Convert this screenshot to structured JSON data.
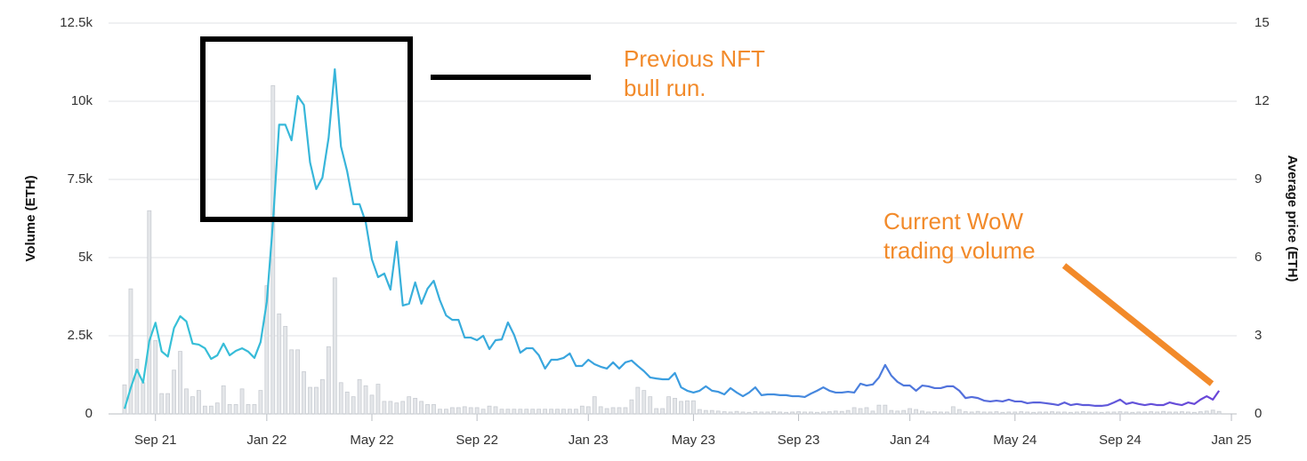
{
  "chart_data": {
    "type": "combo",
    "categories": [
      null,
      null,
      null,
      null,
      null,
      "Sep 21",
      null,
      null,
      null,
      null,
      null,
      null,
      null,
      null,
      null,
      null,
      null,
      null,
      null,
      null,
      null,
      null,
      null,
      "Jan 22",
      null,
      null,
      null,
      null,
      null,
      null,
      null,
      null,
      null,
      null,
      null,
      null,
      null,
      null,
      null,
      null,
      "May 22",
      null,
      null,
      null,
      null,
      null,
      null,
      null,
      null,
      null,
      null,
      null,
      null,
      null,
      null,
      null,
      null,
      "Sep 22",
      null,
      null,
      null,
      null,
      null,
      null,
      null,
      null,
      null,
      null,
      null,
      null,
      null,
      null,
      null,
      null,
      null,
      "Jan 23",
      null,
      null,
      null,
      null,
      null,
      null,
      null,
      null,
      null,
      null,
      null,
      null,
      null,
      null,
      null,
      null,
      "May 23",
      null,
      null,
      null,
      null,
      null,
      null,
      null,
      null,
      null,
      null,
      null,
      null,
      null,
      null,
      null,
      null,
      "Sep 23",
      null,
      null,
      null,
      null,
      null,
      null,
      null,
      null,
      null,
      null,
      null,
      null,
      null,
      null,
      null,
      null,
      null,
      "Jan 24",
      null,
      null,
      null,
      null,
      null,
      null,
      null,
      null,
      null,
      null,
      null,
      null,
      null,
      null,
      null,
      null,
      "May 24",
      null,
      null,
      null,
      null,
      null,
      null,
      null,
      null,
      null,
      null,
      null,
      null,
      null,
      null,
      null,
      null,
      "Sep 24",
      null,
      null,
      null,
      null,
      null,
      null,
      null,
      null,
      null,
      null,
      null,
      null,
      null,
      null,
      null,
      null,
      null,
      "Jan 25"
    ],
    "series": [
      {
        "name": "Volume (ETH)",
        "type": "bar",
        "color": "#e4e6e9",
        "stroke": "#c8ccd2",
        "axis": "y",
        "values": [
          930,
          4000,
          1750,
          1000,
          6500,
          2350,
          650,
          650,
          1400,
          2000,
          800,
          550,
          750,
          250,
          250,
          350,
          900,
          300,
          300,
          800,
          300,
          300,
          750,
          4100,
          10500,
          3200,
          2800,
          2050,
          2050,
          1350,
          850,
          850,
          1100,
          2150,
          4350,
          1000,
          700,
          550,
          1100,
          900,
          600,
          950,
          400,
          400,
          350,
          400,
          550,
          500,
          400,
          300,
          300,
          150,
          150,
          200,
          200,
          230,
          200,
          200,
          150,
          250,
          230,
          150,
          150,
          150,
          150,
          150,
          150,
          150,
          150,
          150,
          150,
          150,
          150,
          150,
          250,
          230,
          550,
          230,
          170,
          200,
          200,
          200,
          450,
          850,
          750,
          550,
          170,
          170,
          550,
          500,
          400,
          420,
          420,
          140,
          110,
          110,
          90,
          70,
          60,
          80,
          60,
          50,
          70,
          60,
          60,
          80,
          60,
          50,
          60,
          70,
          60,
          60,
          50,
          60,
          70,
          90,
          80,
          110,
          200,
          170,
          200,
          90,
          280,
          280,
          110,
          90,
          110,
          170,
          140,
          90,
          60,
          70,
          60,
          60,
          230,
          140,
          70,
          60,
          80,
          60,
          60,
          70,
          50,
          60,
          60,
          70,
          60,
          50,
          60,
          60,
          70,
          60,
          60,
          50,
          60,
          70,
          60,
          60,
          50,
          60,
          60,
          70,
          60,
          50,
          60,
          60,
          70,
          60,
          80,
          60,
          60,
          70,
          60,
          50,
          70,
          90,
          120,
          80,
          null,
          null
        ]
      },
      {
        "name": "Average price (ETH)",
        "type": "line",
        "colors": [
          "#36c3d6",
          "#3a9ee0",
          "#6a45d8"
        ],
        "axis": "y2",
        "values": [
          0.2,
          1.0,
          1.7,
          1.2,
          2.8,
          3.5,
          2.4,
          2.2,
          3.3,
          3.75,
          3.55,
          2.7,
          2.66,
          2.52,
          2.11,
          2.25,
          2.7,
          2.25,
          2.42,
          2.52,
          2.39,
          2.15,
          2.76,
          4.3,
          7.36,
          11.1,
          11.1,
          10.5,
          12.2,
          11.86,
          9.65,
          8.63,
          9.07,
          10.6,
          13.23,
          10.26,
          9.31,
          8.05,
          8.05,
          7.36,
          5.93,
          5.25,
          5.39,
          4.77,
          6.61,
          4.16,
          4.23,
          5.05,
          4.23,
          4.81,
          5.11,
          4.36,
          3.78,
          3.61,
          3.61,
          2.93,
          2.93,
          2.83,
          3.0,
          2.49,
          2.83,
          2.86,
          3.51,
          3.03,
          2.35,
          2.52,
          2.52,
          2.25,
          1.74,
          2.08,
          2.08,
          2.15,
          2.32,
          1.84,
          1.84,
          2.08,
          1.91,
          1.81,
          1.74,
          1.98,
          1.74,
          1.98,
          2.05,
          1.84,
          1.64,
          1.4,
          1.36,
          1.33,
          1.33,
          1.57,
          1.02,
          0.89,
          0.82,
          0.89,
          1.06,
          0.89,
          0.85,
          0.75,
          0.99,
          0.82,
          0.68,
          0.82,
          1.02,
          0.72,
          0.75,
          0.75,
          0.72,
          0.72,
          0.68,
          0.68,
          0.65,
          0.78,
          0.89,
          1.02,
          0.89,
          0.82,
          0.82,
          0.85,
          0.82,
          1.16,
          1.09,
          1.13,
          1.4,
          1.88,
          1.47,
          1.23,
          1.09,
          1.09,
          0.89,
          1.09,
          1.06,
          0.99,
          0.99,
          1.06,
          1.06,
          0.89,
          0.61,
          0.65,
          0.61,
          0.51,
          0.48,
          0.51,
          0.48,
          0.55,
          0.48,
          0.48,
          0.41,
          0.44,
          0.44,
          0.41,
          0.38,
          0.34,
          0.44,
          0.34,
          0.38,
          0.34,
          0.34,
          0.31,
          0.31,
          0.34,
          0.44,
          0.55,
          0.38,
          0.44,
          0.38,
          0.34,
          0.38,
          0.34,
          0.34,
          0.44,
          0.38,
          0.34,
          0.44,
          0.38,
          0.55,
          0.68,
          0.55,
          0.89,
          null,
          null
        ]
      }
    ],
    "ylabel": "Volume (ETH)",
    "y2label": "Average price (ETH)",
    "ylim": [
      0,
      12500
    ],
    "yticks": [
      0,
      {
        "value": 2500,
        "label": "2.5k"
      },
      {
        "value": 5000,
        "label": "5k"
      },
      {
        "value": 7500,
        "label": "7.5k"
      },
      {
        "value": 10000,
        "label": "10k"
      },
      {
        "value": 12500,
        "label": "12.5k"
      }
    ],
    "y2lim": [
      0,
      15
    ],
    "y2ticks": [
      0,
      3,
      6,
      9,
      12,
      15
    ],
    "grid": true,
    "annotations": [
      {
        "lines": [
          "Previous NFT",
          "bull run."
        ],
        "color": "#f28a2a"
      },
      {
        "lines": [
          "Current WoW",
          "trading volume"
        ],
        "color": "#f28a2a"
      }
    ]
  }
}
